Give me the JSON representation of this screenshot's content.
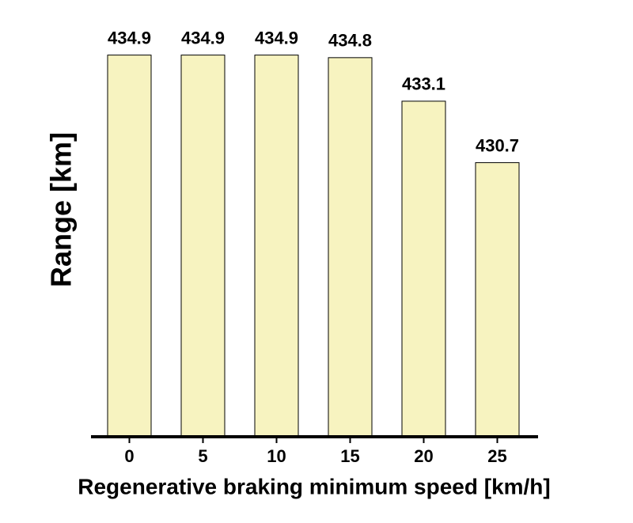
{
  "chart_data": {
    "type": "bar",
    "x_label": "Regenerative braking minimum speed [km/h]",
    "y_label": "Range [km]",
    "categories": [
      "0",
      "5",
      "10",
      "15",
      "20",
      "25"
    ],
    "values": [
      434.9,
      434.9,
      434.9,
      434.8,
      433.1,
      430.7
    ],
    "color": "#f7f3c0",
    "ylim": [
      420,
      436
    ]
  }
}
